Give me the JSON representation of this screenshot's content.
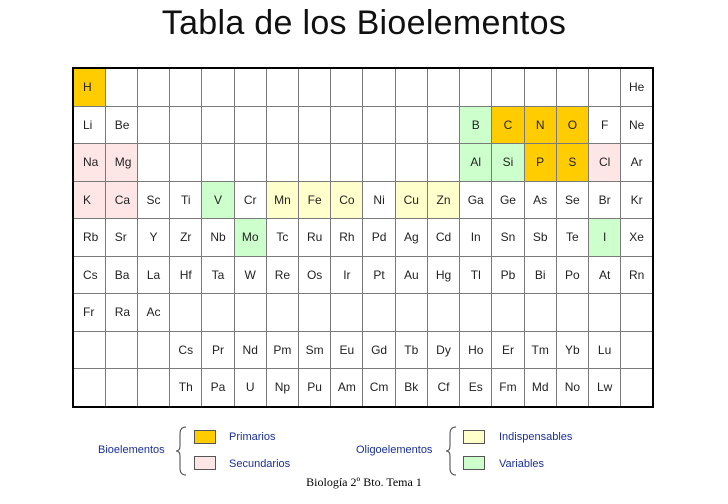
{
  "title": "Tabla de los Bioelementos",
  "footer": "Biología 2º Bto. Tema 1",
  "colors": {
    "primary": "#ffcc00",
    "secondary": "#ffe6e6",
    "essential": "#ffffcc",
    "variable": "#ccffcc",
    "none": "#ffffff"
  },
  "table": {
    "rows": [
      [
        [
          "H",
          "p"
        ],
        [
          "",
          ""
        ],
        [
          "",
          ""
        ],
        [
          "",
          ""
        ],
        [
          "",
          ""
        ],
        [
          "",
          ""
        ],
        [
          "",
          ""
        ],
        [
          "",
          ""
        ],
        [
          "",
          ""
        ],
        [
          "",
          ""
        ],
        [
          "",
          ""
        ],
        [
          "",
          ""
        ],
        [
          "",
          ""
        ],
        [
          "",
          ""
        ],
        [
          "",
          ""
        ],
        [
          "",
          ""
        ],
        [
          "",
          ""
        ],
        [
          "He",
          ""
        ]
      ],
      [
        [
          "Li",
          ""
        ],
        [
          "Be",
          ""
        ],
        [
          "",
          ""
        ],
        [
          "",
          ""
        ],
        [
          "",
          ""
        ],
        [
          "",
          ""
        ],
        [
          "",
          ""
        ],
        [
          "",
          ""
        ],
        [
          "",
          ""
        ],
        [
          "",
          ""
        ],
        [
          "",
          ""
        ],
        [
          "",
          ""
        ],
        [
          "B",
          "v"
        ],
        [
          "C",
          "p"
        ],
        [
          "N",
          "p"
        ],
        [
          "O",
          "p"
        ],
        [
          "F",
          ""
        ],
        [
          "Ne",
          ""
        ]
      ],
      [
        [
          "Na",
          "s"
        ],
        [
          "Mg",
          "s"
        ],
        [
          "",
          ""
        ],
        [
          "",
          ""
        ],
        [
          "",
          ""
        ],
        [
          "",
          ""
        ],
        [
          "",
          ""
        ],
        [
          "",
          ""
        ],
        [
          "",
          ""
        ],
        [
          "",
          ""
        ],
        [
          "",
          ""
        ],
        [
          "",
          ""
        ],
        [
          "Al",
          "v"
        ],
        [
          "Si",
          "v"
        ],
        [
          "P",
          "p"
        ],
        [
          "S",
          "p"
        ],
        [
          "Cl",
          "s"
        ],
        [
          "Ar",
          ""
        ]
      ],
      [
        [
          "K",
          "s"
        ],
        [
          "Ca",
          "s"
        ],
        [
          "Sc",
          ""
        ],
        [
          "Ti",
          ""
        ],
        [
          "V",
          "v"
        ],
        [
          "Cr",
          ""
        ],
        [
          "Mn",
          "e"
        ],
        [
          "Fe",
          "e"
        ],
        [
          "Co",
          "e"
        ],
        [
          "Ni",
          ""
        ],
        [
          "Cu",
          "e"
        ],
        [
          "Zn",
          "e"
        ],
        [
          "Ga",
          ""
        ],
        [
          "Ge",
          ""
        ],
        [
          "As",
          ""
        ],
        [
          "Se",
          ""
        ],
        [
          "Br",
          ""
        ],
        [
          "Kr",
          ""
        ]
      ],
      [
        [
          "Rb",
          ""
        ],
        [
          "Sr",
          ""
        ],
        [
          "Y",
          ""
        ],
        [
          "Zr",
          ""
        ],
        [
          "Nb",
          ""
        ],
        [
          "Mo",
          "v"
        ],
        [
          "Tc",
          ""
        ],
        [
          "Ru",
          ""
        ],
        [
          "Rh",
          ""
        ],
        [
          "Pd",
          ""
        ],
        [
          "Ag",
          ""
        ],
        [
          "Cd",
          ""
        ],
        [
          "In",
          ""
        ],
        [
          "Sn",
          ""
        ],
        [
          "Sb",
          ""
        ],
        [
          "Te",
          ""
        ],
        [
          "I",
          "v"
        ],
        [
          "Xe",
          ""
        ]
      ],
      [
        [
          "Cs",
          ""
        ],
        [
          "Ba",
          ""
        ],
        [
          "La",
          ""
        ],
        [
          "Hf",
          ""
        ],
        [
          "Ta",
          ""
        ],
        [
          "W",
          ""
        ],
        [
          "Re",
          ""
        ],
        [
          "Os",
          ""
        ],
        [
          "Ir",
          ""
        ],
        [
          "Pt",
          ""
        ],
        [
          "Au",
          ""
        ],
        [
          "Hg",
          ""
        ],
        [
          "Tl",
          ""
        ],
        [
          "Pb",
          ""
        ],
        [
          "Bi",
          ""
        ],
        [
          "Po",
          ""
        ],
        [
          "At",
          ""
        ],
        [
          "Rn",
          ""
        ]
      ],
      [
        [
          "Fr",
          ""
        ],
        [
          "Ra",
          ""
        ],
        [
          "Ac",
          ""
        ],
        [
          "",
          ""
        ],
        [
          "",
          ""
        ],
        [
          "",
          ""
        ],
        [
          "",
          ""
        ],
        [
          "",
          ""
        ],
        [
          "",
          ""
        ],
        [
          "",
          ""
        ],
        [
          "",
          ""
        ],
        [
          "",
          ""
        ],
        [
          "",
          ""
        ],
        [
          "",
          ""
        ],
        [
          "",
          ""
        ],
        [
          "",
          ""
        ],
        [
          "",
          ""
        ],
        [
          "",
          ""
        ]
      ],
      [
        [
          "",
          ""
        ],
        [
          "",
          ""
        ],
        [
          "",
          ""
        ],
        [
          "Cs",
          ""
        ],
        [
          "Pr",
          ""
        ],
        [
          "Nd",
          ""
        ],
        [
          "Pm",
          ""
        ],
        [
          "Sm",
          ""
        ],
        [
          "Eu",
          ""
        ],
        [
          "Gd",
          ""
        ],
        [
          "Tb",
          ""
        ],
        [
          "Dy",
          ""
        ],
        [
          "Ho",
          ""
        ],
        [
          "Er",
          ""
        ],
        [
          "Tm",
          ""
        ],
        [
          "Yb",
          ""
        ],
        [
          "Lu",
          ""
        ],
        [
          "",
          ""
        ]
      ],
      [
        [
          "",
          ""
        ],
        [
          "",
          ""
        ],
        [
          "",
          ""
        ],
        [
          "Th",
          ""
        ],
        [
          "Pa",
          ""
        ],
        [
          "U",
          ""
        ],
        [
          "Np",
          ""
        ],
        [
          "Pu",
          ""
        ],
        [
          "Am",
          ""
        ],
        [
          "Cm",
          ""
        ],
        [
          "Bk",
          ""
        ],
        [
          "Cf",
          ""
        ],
        [
          "Es",
          ""
        ],
        [
          "Fm",
          ""
        ],
        [
          "Md",
          ""
        ],
        [
          "No",
          ""
        ],
        [
          "Lw",
          ""
        ],
        [
          "",
          ""
        ]
      ]
    ]
  },
  "legend": {
    "bioelementos": "Bioelementos",
    "primarios": "Primarios",
    "secundarios": "Secundarios",
    "oligoelementos": "Oligoelementos",
    "indispensables": "Indispensables",
    "variables": "Variables"
  }
}
